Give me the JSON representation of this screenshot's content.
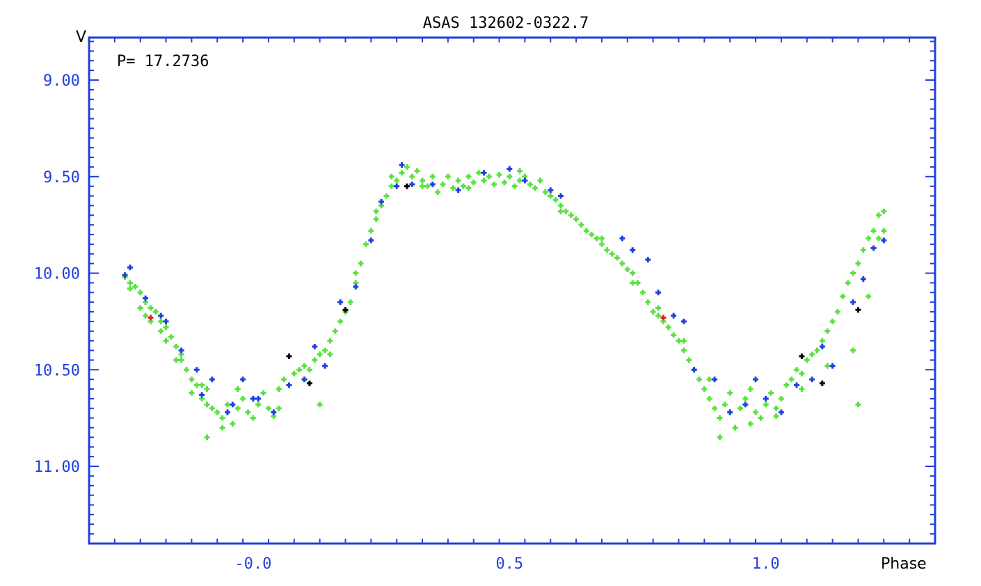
{
  "chart_data": {
    "type": "scatter",
    "title": "ASAS 132602-0322.7",
    "period_label": "P= 17.2736",
    "xlabel": "Phase",
    "ylabel": "V",
    "xlim": [
      -0.32,
      1.33
    ],
    "ylim": [
      11.4,
      8.78
    ],
    "y_inverted": true,
    "y_ticks": [
      {
        "value": 9.0,
        "label": "9.00"
      },
      {
        "value": 9.5,
        "label": "9.50"
      },
      {
        "value": 10.0,
        "label": "10.00"
      },
      {
        "value": 10.5,
        "label": "10.50"
      },
      {
        "value": 11.0,
        "label": "11.00"
      }
    ],
    "x_ticks": [
      {
        "value": 0.0,
        "label": "-0.0"
      },
      {
        "value": 0.5,
        "label": "0.5"
      },
      {
        "value": 1.0,
        "label": "1.0"
      }
    ],
    "colors": {
      "axis": "#1f3fe0",
      "good": "#5ae040",
      "fair": "#1f3fe0",
      "poor": "#000000",
      "bad": "#e02020"
    },
    "series": [
      {
        "color": "#5ae040",
        "points": [
          [
            -0.25,
            10.02
          ],
          [
            -0.24,
            10.05
          ],
          [
            -0.23,
            10.07
          ],
          [
            -0.24,
            10.08
          ],
          [
            -0.22,
            10.1
          ],
          [
            -0.21,
            10.15
          ],
          [
            -0.2,
            10.18
          ],
          [
            -0.21,
            10.22
          ],
          [
            -0.19,
            10.2
          ],
          [
            -0.18,
            10.25
          ],
          [
            -0.17,
            10.28
          ],
          [
            -0.18,
            10.3
          ],
          [
            -0.16,
            10.33
          ],
          [
            -0.15,
            10.38
          ],
          [
            -0.14,
            10.42
          ],
          [
            -0.15,
            10.45
          ],
          [
            -0.13,
            10.5
          ],
          [
            -0.12,
            10.55
          ],
          [
            -0.11,
            10.58
          ],
          [
            -0.12,
            10.62
          ],
          [
            -0.1,
            10.65
          ],
          [
            -0.09,
            10.68
          ],
          [
            -0.08,
            10.7
          ],
          [
            -0.09,
            10.6
          ],
          [
            -0.07,
            10.72
          ],
          [
            -0.06,
            10.75
          ],
          [
            -0.05,
            10.68
          ],
          [
            -0.06,
            10.8
          ],
          [
            -0.04,
            10.78
          ],
          [
            -0.03,
            10.7
          ],
          [
            -0.02,
            10.65
          ],
          [
            -0.03,
            10.6
          ],
          [
            -0.01,
            10.72
          ],
          [
            0.0,
            10.75
          ],
          [
            0.01,
            10.68
          ],
          [
            0.02,
            10.62
          ],
          [
            0.03,
            10.7
          ],
          [
            0.04,
            10.74
          ],
          [
            0.05,
            10.6
          ],
          [
            0.06,
            10.55
          ],
          [
            0.07,
            10.58
          ],
          [
            0.08,
            10.52
          ],
          [
            0.09,
            10.5
          ],
          [
            0.1,
            10.48
          ],
          [
            0.11,
            10.5
          ],
          [
            0.12,
            10.45
          ],
          [
            0.13,
            10.42
          ],
          [
            0.14,
            10.4
          ],
          [
            0.15,
            10.35
          ],
          [
            0.16,
            10.3
          ],
          [
            0.17,
            10.25
          ],
          [
            0.18,
            10.2
          ],
          [
            0.19,
            10.15
          ],
          [
            0.2,
            10.05
          ],
          [
            0.21,
            9.95
          ],
          [
            0.22,
            9.85
          ],
          [
            0.23,
            9.78
          ],
          [
            0.24,
            9.72
          ],
          [
            0.25,
            9.65
          ],
          [
            0.26,
            9.6
          ],
          [
            0.27,
            9.55
          ],
          [
            0.28,
            9.52
          ],
          [
            0.29,
            9.48
          ],
          [
            0.3,
            9.45
          ],
          [
            0.31,
            9.5
          ],
          [
            0.32,
            9.47
          ],
          [
            0.33,
            9.52
          ],
          [
            0.34,
            9.55
          ],
          [
            0.35,
            9.5
          ],
          [
            0.36,
            9.58
          ],
          [
            0.37,
            9.54
          ],
          [
            0.38,
            9.5
          ],
          [
            0.39,
            9.56
          ],
          [
            0.4,
            9.52
          ],
          [
            0.41,
            9.55
          ],
          [
            0.42,
            9.5
          ],
          [
            0.43,
            9.53
          ],
          [
            0.44,
            9.48
          ],
          [
            0.45,
            9.52
          ],
          [
            0.46,
            9.5
          ],
          [
            0.47,
            9.54
          ],
          [
            0.48,
            9.49
          ],
          [
            0.49,
            9.53
          ],
          [
            0.5,
            9.5
          ],
          [
            0.51,
            9.55
          ],
          [
            0.52,
            9.52
          ],
          [
            0.53,
            9.5
          ],
          [
            0.54,
            9.54
          ],
          [
            0.55,
            9.56
          ],
          [
            0.56,
            9.52
          ],
          [
            0.57,
            9.58
          ],
          [
            0.58,
            9.6
          ],
          [
            0.59,
            9.62
          ],
          [
            0.6,
            9.65
          ],
          [
            0.61,
            9.68
          ],
          [
            0.62,
            9.7
          ],
          [
            0.63,
            9.72
          ],
          [
            0.64,
            9.75
          ],
          [
            0.65,
            9.78
          ],
          [
            0.66,
            9.8
          ],
          [
            0.67,
            9.82
          ],
          [
            0.68,
            9.85
          ],
          [
            0.69,
            9.88
          ],
          [
            0.7,
            9.9
          ],
          [
            0.71,
            9.92
          ],
          [
            0.72,
            9.95
          ],
          [
            0.73,
            9.98
          ],
          [
            0.74,
            10.0
          ],
          [
            0.75,
            10.05
          ],
          [
            0.76,
            10.1
          ],
          [
            0.77,
            10.15
          ],
          [
            0.78,
            10.2
          ],
          [
            0.79,
            10.22
          ],
          [
            0.8,
            10.25
          ],
          [
            0.81,
            10.28
          ],
          [
            0.82,
            10.32
          ],
          [
            0.83,
            10.35
          ],
          [
            0.84,
            10.4
          ],
          [
            0.85,
            10.45
          ],
          [
            0.86,
            10.5
          ],
          [
            0.87,
            10.55
          ],
          [
            0.88,
            10.6
          ],
          [
            0.89,
            10.65
          ],
          [
            0.9,
            10.7
          ],
          [
            0.91,
            10.75
          ],
          [
            0.92,
            10.68
          ],
          [
            0.93,
            10.72
          ],
          [
            0.94,
            10.8
          ],
          [
            0.95,
            10.7
          ],
          [
            0.96,
            10.65
          ],
          [
            0.97,
            10.6
          ],
          [
            0.98,
            10.72
          ],
          [
            0.99,
            10.75
          ],
          [
            1.0,
            10.68
          ],
          [
            1.01,
            10.62
          ],
          [
            1.02,
            10.7
          ],
          [
            1.03,
            10.65
          ],
          [
            1.04,
            10.58
          ],
          [
            1.05,
            10.55
          ],
          [
            1.06,
            10.5
          ],
          [
            1.07,
            10.52
          ],
          [
            1.08,
            10.45
          ],
          [
            1.09,
            10.42
          ],
          [
            1.1,
            10.4
          ],
          [
            1.11,
            10.35
          ],
          [
            1.12,
            10.3
          ],
          [
            1.13,
            10.25
          ],
          [
            1.14,
            10.2
          ],
          [
            1.15,
            10.12
          ],
          [
            1.16,
            10.05
          ],
          [
            1.17,
            10.0
          ],
          [
            1.18,
            9.95
          ],
          [
            1.19,
            9.88
          ],
          [
            1.2,
            9.82
          ],
          [
            1.21,
            9.78
          ],
          [
            1.22,
            9.7
          ],
          [
            1.23,
            9.68
          ],
          [
            1.23,
            9.78
          ],
          [
            1.22,
            9.82
          ],
          [
            -0.22,
            10.18
          ],
          [
            -0.2,
            10.25
          ],
          [
            -0.17,
            10.35
          ],
          [
            -0.14,
            10.45
          ],
          [
            -0.1,
            10.58
          ],
          [
            -0.05,
            10.72
          ],
          [
            0.0,
            10.65
          ],
          [
            0.05,
            10.7
          ],
          [
            0.1,
            10.55
          ],
          [
            0.15,
            10.42
          ],
          [
            0.2,
            10.0
          ],
          [
            0.24,
            9.68
          ],
          [
            0.27,
            9.5
          ],
          [
            0.33,
            9.55
          ],
          [
            0.42,
            9.56
          ],
          [
            0.52,
            9.47
          ],
          [
            0.6,
            9.68
          ],
          [
            0.68,
            9.82
          ],
          [
            0.74,
            10.05
          ],
          [
            0.79,
            10.18
          ],
          [
            0.84,
            10.35
          ],
          [
            0.89,
            10.55
          ],
          [
            0.93,
            10.62
          ],
          [
            0.97,
            10.78
          ],
          [
            1.02,
            10.74
          ],
          [
            1.07,
            10.6
          ],
          [
            1.12,
            10.48
          ],
          [
            1.17,
            10.4
          ],
          [
            1.2,
            10.12
          ],
          [
            0.13,
            10.68
          ],
          [
            1.18,
            10.68
          ],
          [
            -0.09,
            10.85
          ],
          [
            0.91,
            10.85
          ]
        ]
      },
      {
        "color": "#1f3fe0",
        "points": [
          [
            -0.25,
            10.01
          ],
          [
            -0.24,
            9.97
          ],
          [
            -0.21,
            10.13
          ],
          [
            -0.18,
            10.22
          ],
          [
            -0.17,
            10.25
          ],
          [
            -0.14,
            10.4
          ],
          [
            -0.11,
            10.5
          ],
          [
            -0.1,
            10.63
          ],
          [
            -0.08,
            10.55
          ],
          [
            -0.05,
            10.72
          ],
          [
            -0.04,
            10.68
          ],
          [
            -0.02,
            10.55
          ],
          [
            0.0,
            10.65
          ],
          [
            0.01,
            10.65
          ],
          [
            0.04,
            10.72
          ],
          [
            0.07,
            10.58
          ],
          [
            0.1,
            10.55
          ],
          [
            0.12,
            10.38
          ],
          [
            0.14,
            10.48
          ],
          [
            0.17,
            10.15
          ],
          [
            0.2,
            10.07
          ],
          [
            0.23,
            9.83
          ],
          [
            0.25,
            9.63
          ],
          [
            0.28,
            9.55
          ],
          [
            0.29,
            9.44
          ],
          [
            0.31,
            9.54
          ],
          [
            0.35,
            9.54
          ],
          [
            0.4,
            9.57
          ],
          [
            0.45,
            9.48
          ],
          [
            0.5,
            9.46
          ],
          [
            0.53,
            9.52
          ],
          [
            0.58,
            9.57
          ],
          [
            0.6,
            9.6
          ],
          [
            0.72,
            9.82
          ],
          [
            0.74,
            9.88
          ],
          [
            0.77,
            9.93
          ],
          [
            0.79,
            10.1
          ],
          [
            0.82,
            10.22
          ],
          [
            0.84,
            10.25
          ],
          [
            0.86,
            10.5
          ],
          [
            0.9,
            10.55
          ],
          [
            0.93,
            10.72
          ],
          [
            0.96,
            10.68
          ],
          [
            0.98,
            10.55
          ],
          [
            1.0,
            10.65
          ],
          [
            1.03,
            10.72
          ],
          [
            1.06,
            10.58
          ],
          [
            1.09,
            10.55
          ],
          [
            1.11,
            10.38
          ],
          [
            1.13,
            10.48
          ],
          [
            1.17,
            10.15
          ],
          [
            1.19,
            10.03
          ],
          [
            1.21,
            9.87
          ],
          [
            1.23,
            9.83
          ]
        ]
      },
      {
        "color": "#000000",
        "points": [
          [
            0.07,
            10.43
          ],
          [
            0.11,
            10.57
          ],
          [
            0.18,
            10.19
          ],
          [
            0.3,
            9.55
          ],
          [
            1.07,
            10.43
          ],
          [
            1.11,
            10.57
          ],
          [
            1.18,
            10.19
          ]
        ]
      },
      {
        "color": "#e02020",
        "points": [
          [
            -0.2,
            10.23
          ],
          [
            0.8,
            10.23
          ]
        ]
      }
    ]
  }
}
